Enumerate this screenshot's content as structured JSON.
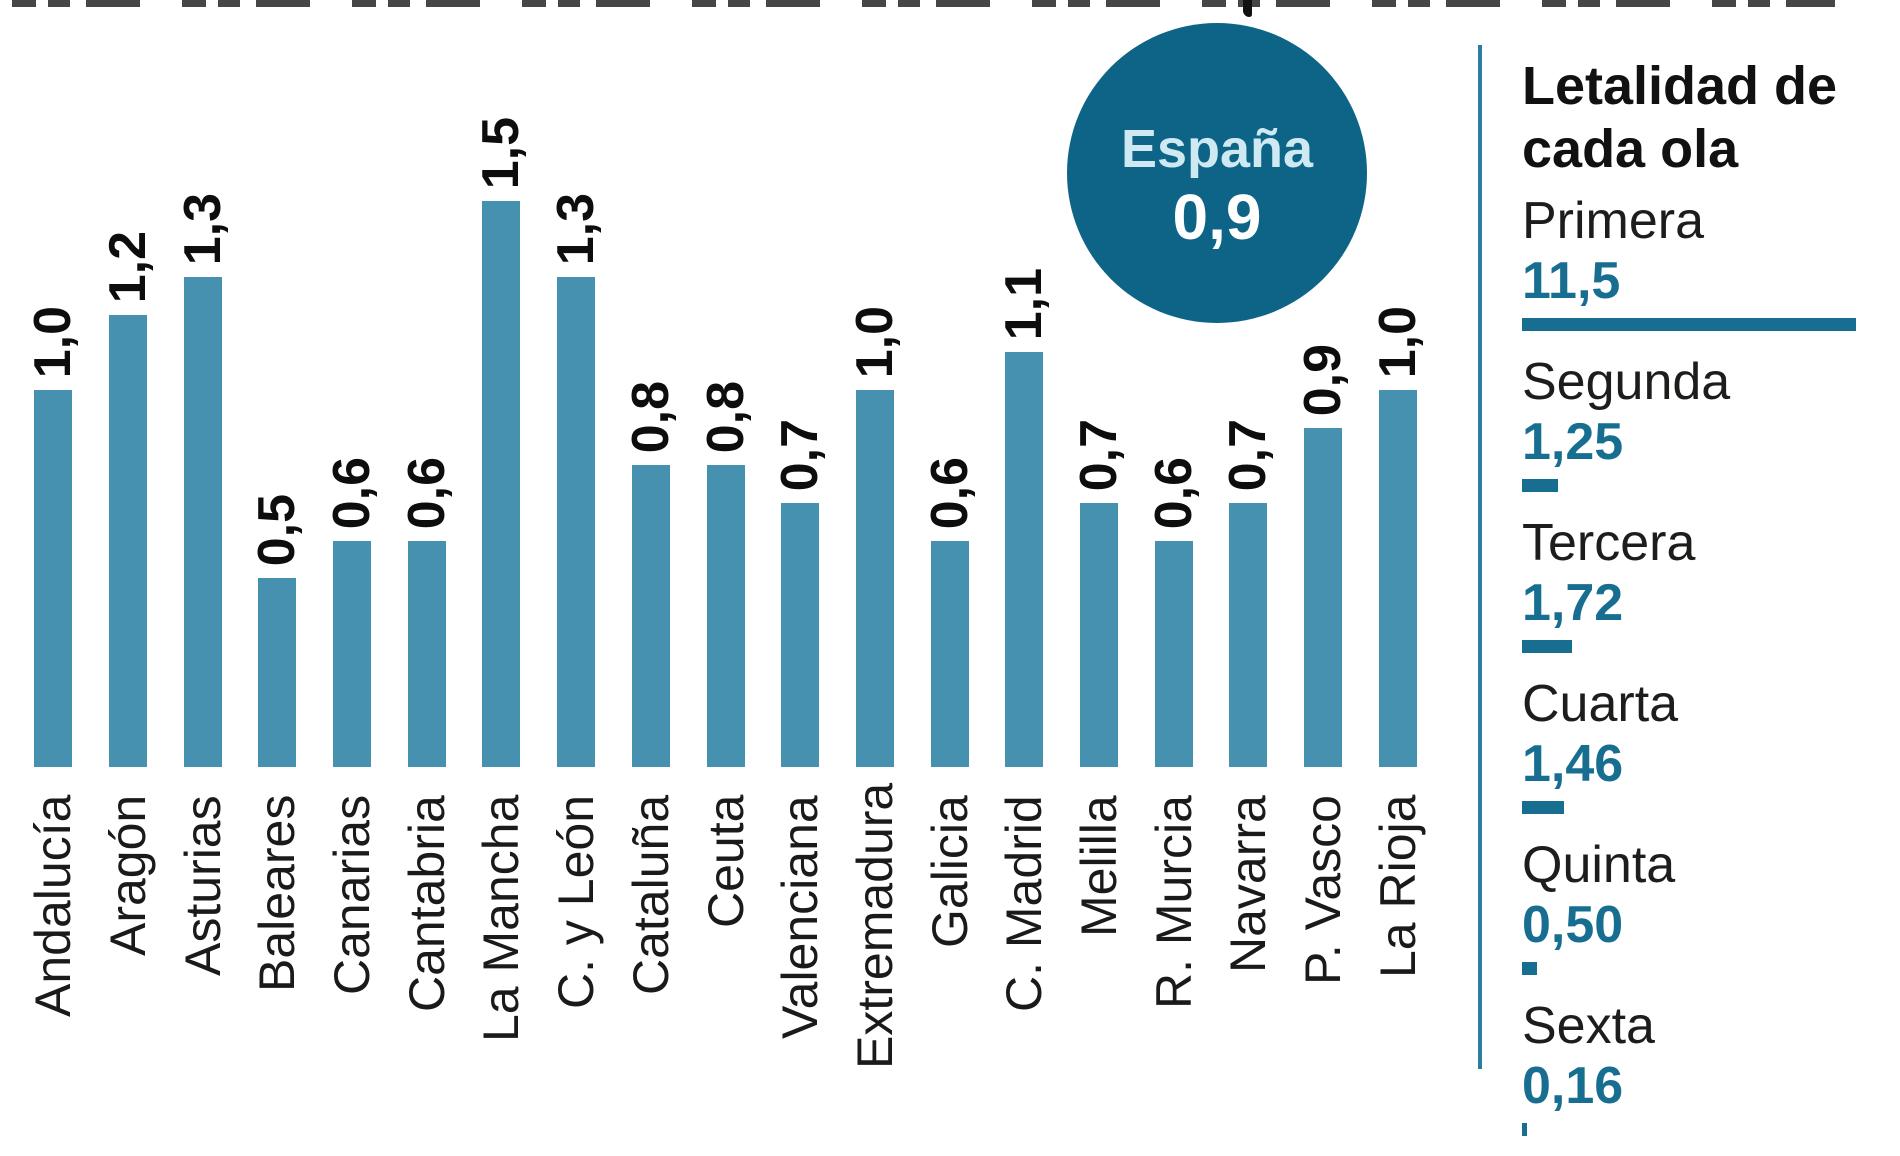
{
  "chart_data": {
    "type": "bar",
    "title": "",
    "xlabel": "",
    "ylabel": "",
    "ylim": [
      0,
      1.6
    ],
    "grid": false,
    "legend_position": "right-sidebar",
    "categories": [
      "Andalucía",
      "Aragón",
      "Asturias",
      "Baleares",
      "Canarias",
      "Cantabria",
      "La Mancha",
      "C. y León",
      "Cataluña",
      "Ceuta",
      "Valenciana",
      "Extremadura",
      "Galicia",
      "C. Madrid",
      "Melilla",
      "R. Murcia",
      "Navarra",
      "P. Vasco",
      "La Rioja"
    ],
    "values": [
      1.0,
      1.2,
      1.3,
      0.5,
      0.6,
      0.6,
      1.5,
      1.3,
      0.8,
      0.8,
      0.7,
      1.0,
      0.6,
      1.1,
      0.7,
      0.6,
      0.7,
      0.9,
      1.0
    ],
    "value_labels": [
      "1,0",
      "1,2",
      "1,3",
      "0,5",
      "0,6",
      "0,6",
      "1,5",
      "1,3",
      "0,8",
      "0,8",
      "0,7",
      "1,0",
      "0,6",
      "1,1",
      "0,7",
      "0,6",
      "0,7",
      "0,9",
      "1,0"
    ],
    "annotation": {
      "label": "España",
      "value": "0,9"
    },
    "sidebar_legend": {
      "title": "Letalidad de cada ola",
      "waves": [
        {
          "name": "Primera",
          "value": "11,5"
        },
        {
          "name": "Segunda",
          "value": "1,25"
        },
        {
          "name": "Tercera",
          "value": "1,72"
        },
        {
          "name": "Cuarta",
          "value": "1,46"
        },
        {
          "name": "Quinta",
          "value": "0,50"
        },
        {
          "name": "Sexta",
          "value": "0,16"
        }
      ]
    }
  },
  "colors": {
    "bar": "#4791b0",
    "badge": "#0e6487",
    "badge_label": "#cfe9f3",
    "badge_value": "#ffffff",
    "legend_accent": "#186e90",
    "divider": "#2d7e9e",
    "text": "#1a1a1a"
  }
}
